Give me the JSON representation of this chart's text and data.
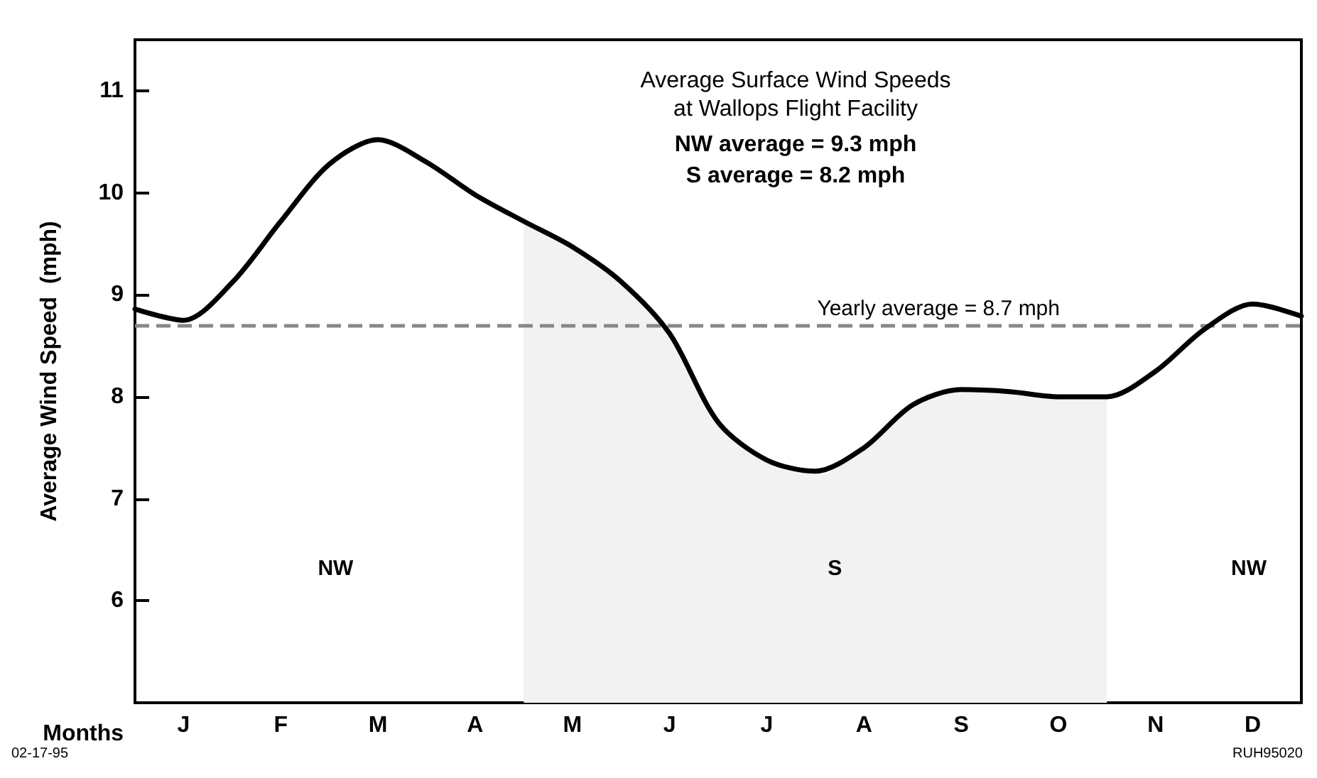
{
  "chart_data": {
    "type": "line",
    "title": "Average Surface Wind Speeds\nat Wallops Flight Facility",
    "subtitle": "NW average = 9.3 mph\nS average = 8.2 mph",
    "xlabel": "Months",
    "ylabel": "Average Wind Speed  (mph)",
    "categories": [
      null,
      "J",
      null,
      "F",
      null,
      "M",
      null,
      "A",
      null,
      "M",
      null,
      "J",
      null,
      "J",
      null,
      "A",
      null,
      "S",
      null,
      "O",
      null,
      "N",
      null,
      "D",
      null
    ],
    "series": [
      {
        "type": "area",
        "color": "#f2f2f2",
        "values": [
          null,
          null,
          null,
          null,
          null,
          null,
          null,
          null,
          9.72,
          9.47,
          9.13,
          8.62,
          7.75,
          7.38,
          7.27,
          7.5,
          7.92,
          8.07,
          8.05,
          8.0,
          8.0,
          null,
          null,
          null,
          null
        ]
      },
      {
        "color": "#000000",
        "values": [
          8.86,
          8.75,
          9.12,
          9.72,
          10.28,
          10.52,
          10.3,
          9.98,
          9.72,
          9.47,
          9.13,
          8.62,
          7.75,
          7.38,
          7.27,
          7.5,
          7.92,
          8.07,
          8.05,
          8.0,
          8.0,
          8.25,
          8.66,
          8.91,
          8.79
        ]
      }
    ],
    "ylim": [
      5,
      11.5
    ],
    "yticks": [
      6,
      7,
      8,
      9,
      10,
      11
    ],
    "ref_lines": [
      {
        "axis": "y",
        "value": 8.7,
        "label": "Yearly average = 8.7 mph",
        "color": "#888888",
        "line_style": "dashed"
      }
    ],
    "annotations": [
      "NW",
      "S",
      "NW",
      "02-17-95",
      "RUH95020"
    ],
    "grid": false,
    "marker": "none",
    "line_style": "solid"
  }
}
